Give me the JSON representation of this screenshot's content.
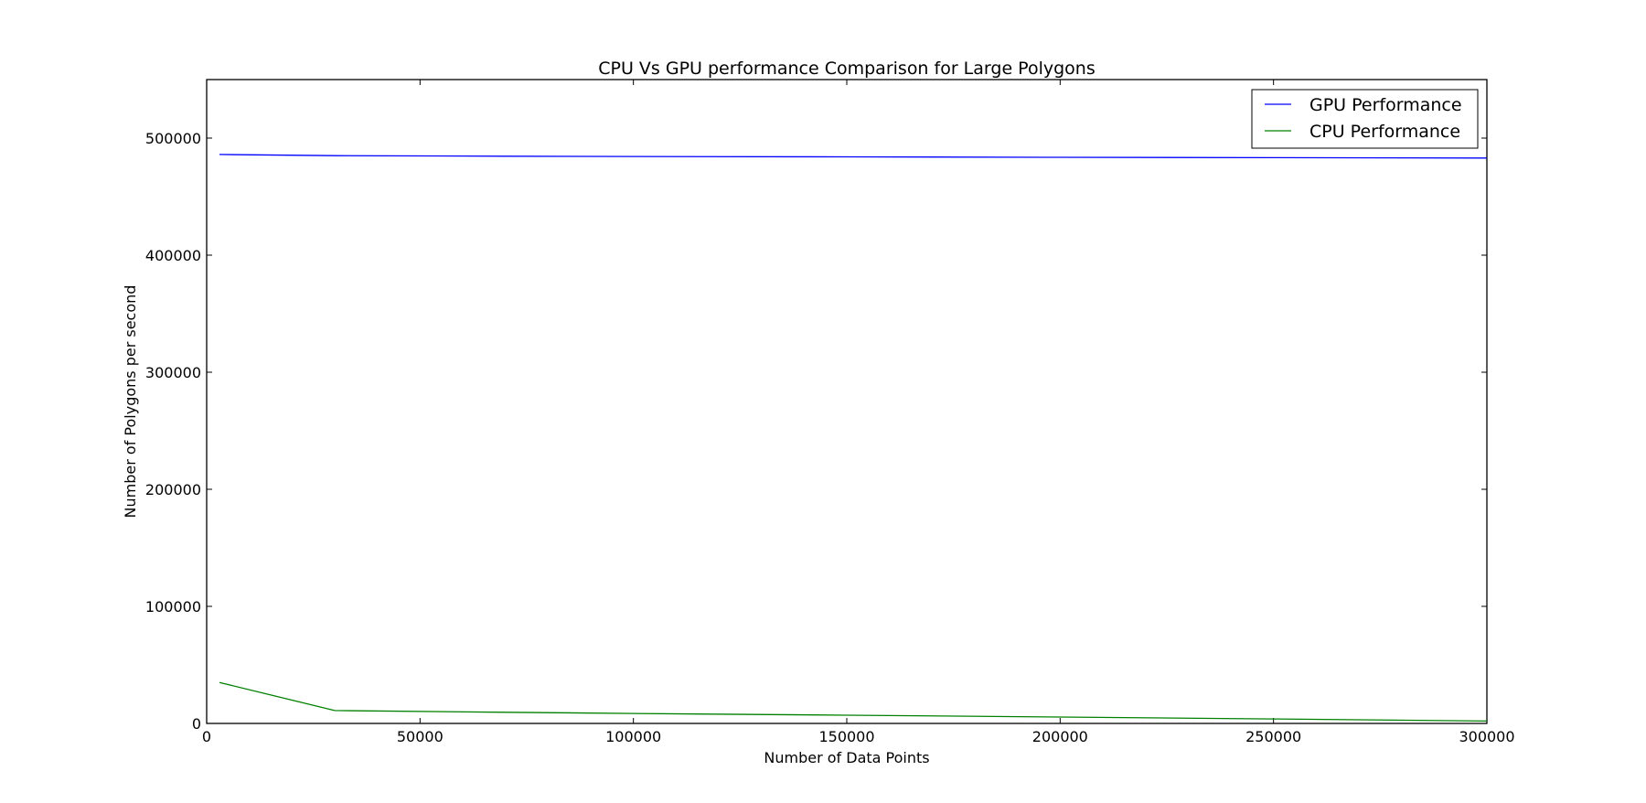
{
  "chart_data": {
    "type": "line",
    "title": "CPU Vs GPU performance Comparison for Large Polygons",
    "xlabel": "Number of Data Points",
    "ylabel": "Number of Polygons per second",
    "xlim": [
      0,
      300000
    ],
    "ylim": [
      0,
      550000
    ],
    "xticks": [
      0,
      50000,
      100000,
      150000,
      200000,
      250000,
      300000
    ],
    "yticks": [
      0,
      100000,
      200000,
      300000,
      400000,
      500000
    ],
    "grid": false,
    "legend_position": "top-right",
    "series": [
      {
        "name": "GPU Performance",
        "color": "#0000ff",
        "x": [
          3000,
          30000,
          70000,
          100000,
          150000,
          200000,
          250000,
          300000
        ],
        "y": [
          486000,
          485000,
          484500,
          484300,
          484000,
          483600,
          483300,
          483000
        ]
      },
      {
        "name": "CPU Performance",
        "color": "#008000",
        "x": [
          3000,
          30000,
          70000,
          100000,
          150000,
          200000,
          250000,
          300000
        ],
        "y": [
          35000,
          11000,
          9500,
          8500,
          7000,
          5500,
          3800,
          2000
        ]
      }
    ]
  }
}
